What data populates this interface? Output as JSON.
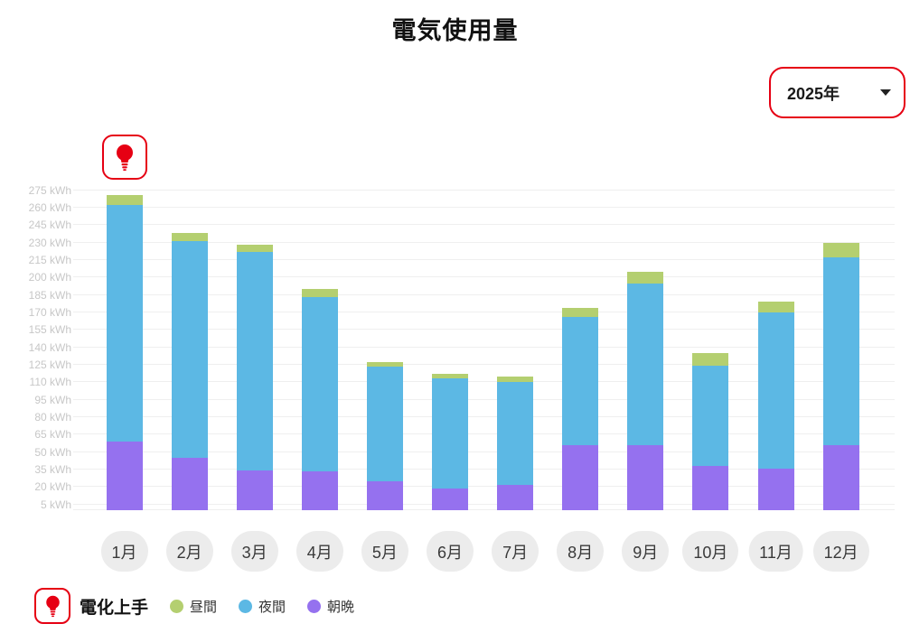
{
  "title": "電気使用量",
  "year_selector": {
    "value": "2025年"
  },
  "icons": {
    "lightbulb_color": "#e60013",
    "accent_red": "#e60013"
  },
  "legend": {
    "plan_name": "電化上手"
  },
  "chart_data": {
    "type": "bar",
    "stacked": true,
    "title": "電気使用量",
    "unit": "kWh",
    "categories": [
      "1月",
      "2月",
      "3月",
      "4月",
      "5月",
      "6月",
      "7月",
      "8月",
      "9月",
      "10月",
      "11月",
      "12月"
    ],
    "series": [
      {
        "name": "昼間",
        "color": "#b4cf70",
        "values": [
          9,
          7,
          6,
          7,
          4,
          4,
          5,
          8,
          10,
          11,
          9,
          13
        ]
      },
      {
        "name": "夜間",
        "color": "#5cb8e4",
        "values": [
          203,
          186,
          188,
          150,
          98,
          94,
          88,
          110,
          139,
          86,
          134,
          161
        ]
      },
      {
        "name": "朝晩",
        "color": "#9571ef",
        "values": [
          59,
          45,
          34,
          33,
          25,
          19,
          22,
          56,
          56,
          38,
          36,
          56
        ]
      }
    ],
    "stack_order_bottom_to_top": [
      "朝晩",
      "夜間",
      "昼間"
    ],
    "totals": [
      271,
      238,
      228,
      190,
      127,
      117,
      115,
      174,
      205,
      135,
      179,
      230
    ],
    "y_axis": {
      "min": 5,
      "max": 275,
      "step": 15,
      "tick_suffix": " kWh"
    },
    "grid": true,
    "legend_position": "bottom"
  }
}
